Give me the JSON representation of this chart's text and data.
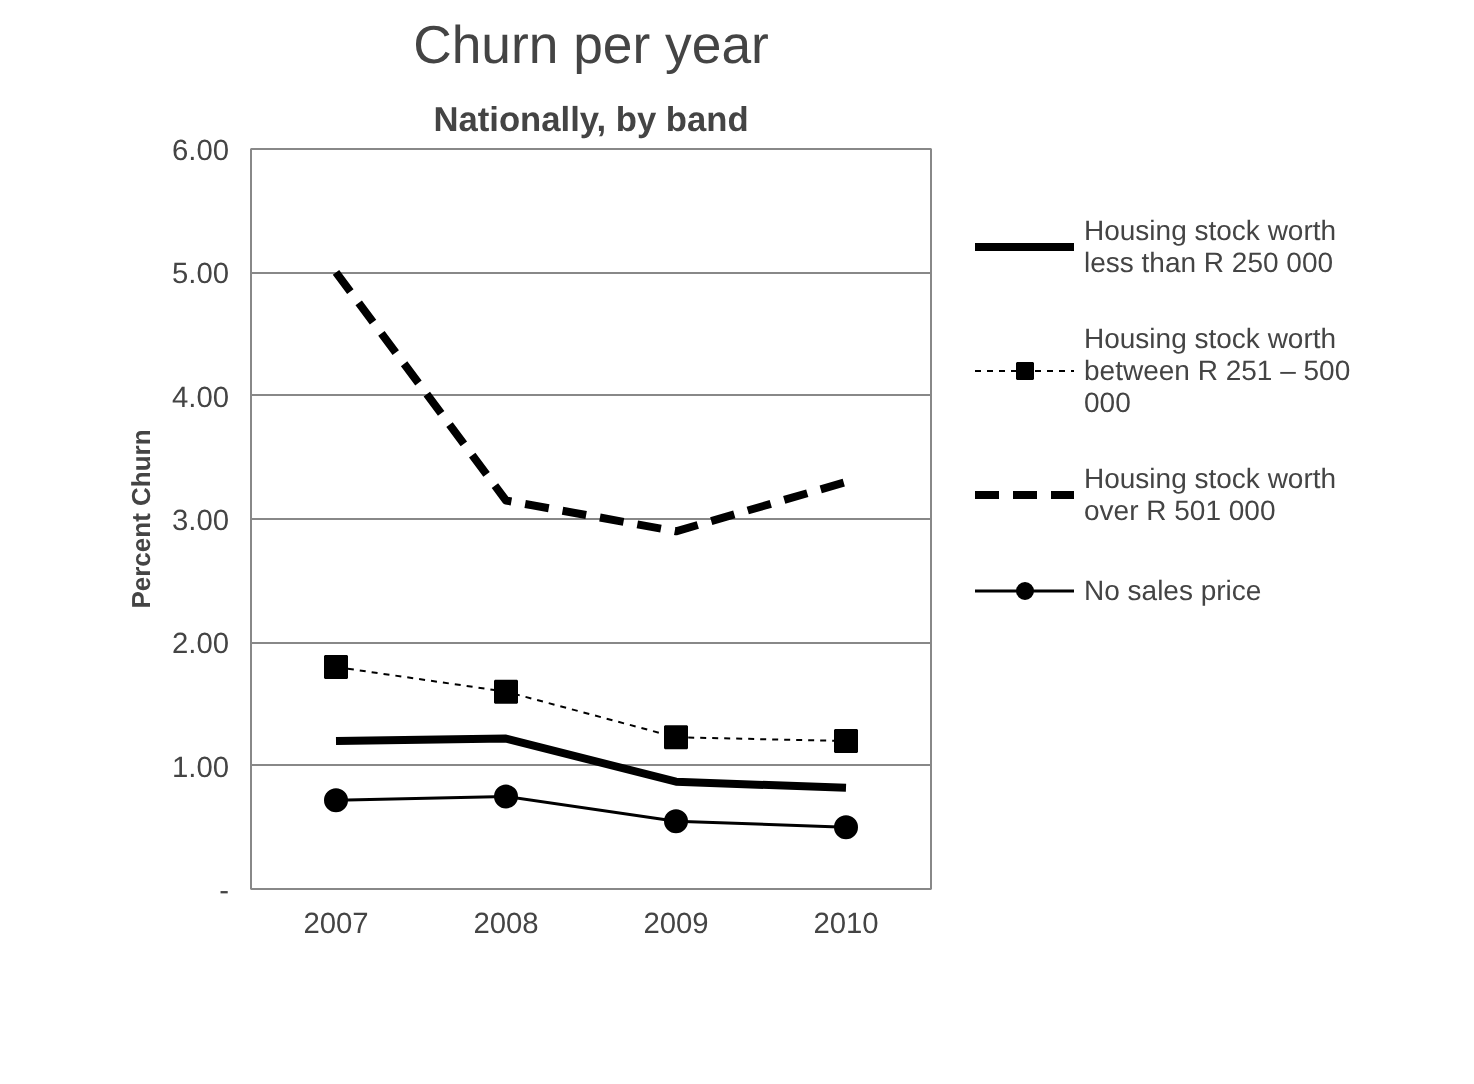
{
  "chart_data": {
    "type": "line",
    "title": "Churn per year",
    "subtitle": "Nationally, by band",
    "ylabel": "Percent Churn",
    "categories": [
      "2007",
      "2008",
      "2009",
      "2010"
    ],
    "series": [
      {
        "name": "Housing stock worth less than R 250 000",
        "color": "#000000",
        "values": [
          1.2,
          1.22,
          0.87,
          0.82
        ],
        "marker": "none",
        "line_style": "solid"
      },
      {
        "name": "Housing stock worth between R 251 – 500 000",
        "color": "#000000",
        "values": [
          1.8,
          1.6,
          1.23,
          1.2
        ],
        "marker": "square",
        "line_style": "dotted"
      },
      {
        "name": "Housing stock worth over R 501 000",
        "color": "#000000",
        "values": [
          5.0,
          3.15,
          2.9,
          3.3
        ],
        "marker": "none",
        "line_style": "dashed"
      },
      {
        "name": "No sales price",
        "color": "#000000",
        "values": [
          0.72,
          0.75,
          0.55,
          0.5
        ],
        "marker": "circle",
        "line_style": "solid"
      }
    ],
    "ylim": [
      0,
      6
    ],
    "yticks": [
      {
        "value": 0,
        "label": "-"
      },
      {
        "value": 1,
        "label": "1.00"
      },
      {
        "value": 2,
        "label": "2.00"
      },
      {
        "value": 3,
        "label": "3.00"
      },
      {
        "value": 4,
        "label": "4.00"
      },
      {
        "value": 5,
        "label": "5.00"
      },
      {
        "value": 6,
        "label": "6.00"
      }
    ],
    "grid": "y",
    "legend": "right"
  }
}
